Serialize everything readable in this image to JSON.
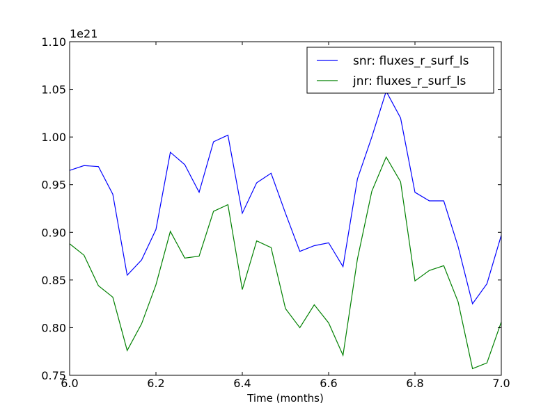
{
  "chart_data": {
    "type": "line",
    "xlabel": "Time (months)",
    "ylabel": "",
    "offset_label": "1e21",
    "xlim": [
      6.0,
      7.0
    ],
    "ylim": [
      0.75,
      1.1
    ],
    "x_ticks": [
      6.0,
      6.2,
      6.4,
      6.6,
      6.8,
      7.0
    ],
    "x_tick_labels": [
      "6.0",
      "6.2",
      "6.4",
      "6.6",
      "6.8",
      "7.0"
    ],
    "y_ticks": [
      0.75,
      0.8,
      0.85,
      0.9,
      0.95,
      1.0,
      1.05,
      1.1
    ],
    "y_tick_labels": [
      "0.75",
      "0.80",
      "0.85",
      "0.90",
      "0.95",
      "1.00",
      "1.05",
      "1.10"
    ],
    "grid": false,
    "legend_position": "top-right",
    "x": [
      6.0,
      6.0333,
      6.0667,
      6.1,
      6.1333,
      6.1667,
      6.2,
      6.2333,
      6.2667,
      6.3,
      6.3333,
      6.3667,
      6.4,
      6.4333,
      6.4667,
      6.5,
      6.5333,
      6.5667,
      6.6,
      6.6333,
      6.6667,
      6.7,
      6.7333,
      6.7667,
      6.8,
      6.8333,
      6.8667,
      6.9,
      6.9333,
      6.9667,
      7.0
    ],
    "series": [
      {
        "name": "snr: fluxes_r_surf_ls",
        "color": "#0000ff",
        "values": [
          0.965,
          0.97,
          0.969,
          0.94,
          0.855,
          0.871,
          0.903,
          0.984,
          0.971,
          0.942,
          0.995,
          1.002,
          0.92,
          0.952,
          0.962,
          0.92,
          0.88,
          0.886,
          0.889,
          0.864,
          0.956,
          1.0,
          1.048,
          1.02,
          0.942,
          0.933,
          0.933,
          0.885,
          0.825,
          0.846,
          0.897
        ]
      },
      {
        "name": "jnr: fluxes_r_surf_ls",
        "color": "#008000",
        "values": [
          0.888,
          0.876,
          0.844,
          0.832,
          0.776,
          0.804,
          0.845,
          0.901,
          0.873,
          0.875,
          0.922,
          0.929,
          0.84,
          0.891,
          0.884,
          0.82,
          0.8,
          0.824,
          0.805,
          0.771,
          0.872,
          0.943,
          0.979,
          0.953,
          0.849,
          0.86,
          0.865,
          0.827,
          0.757,
          0.763,
          0.806
        ]
      }
    ]
  }
}
